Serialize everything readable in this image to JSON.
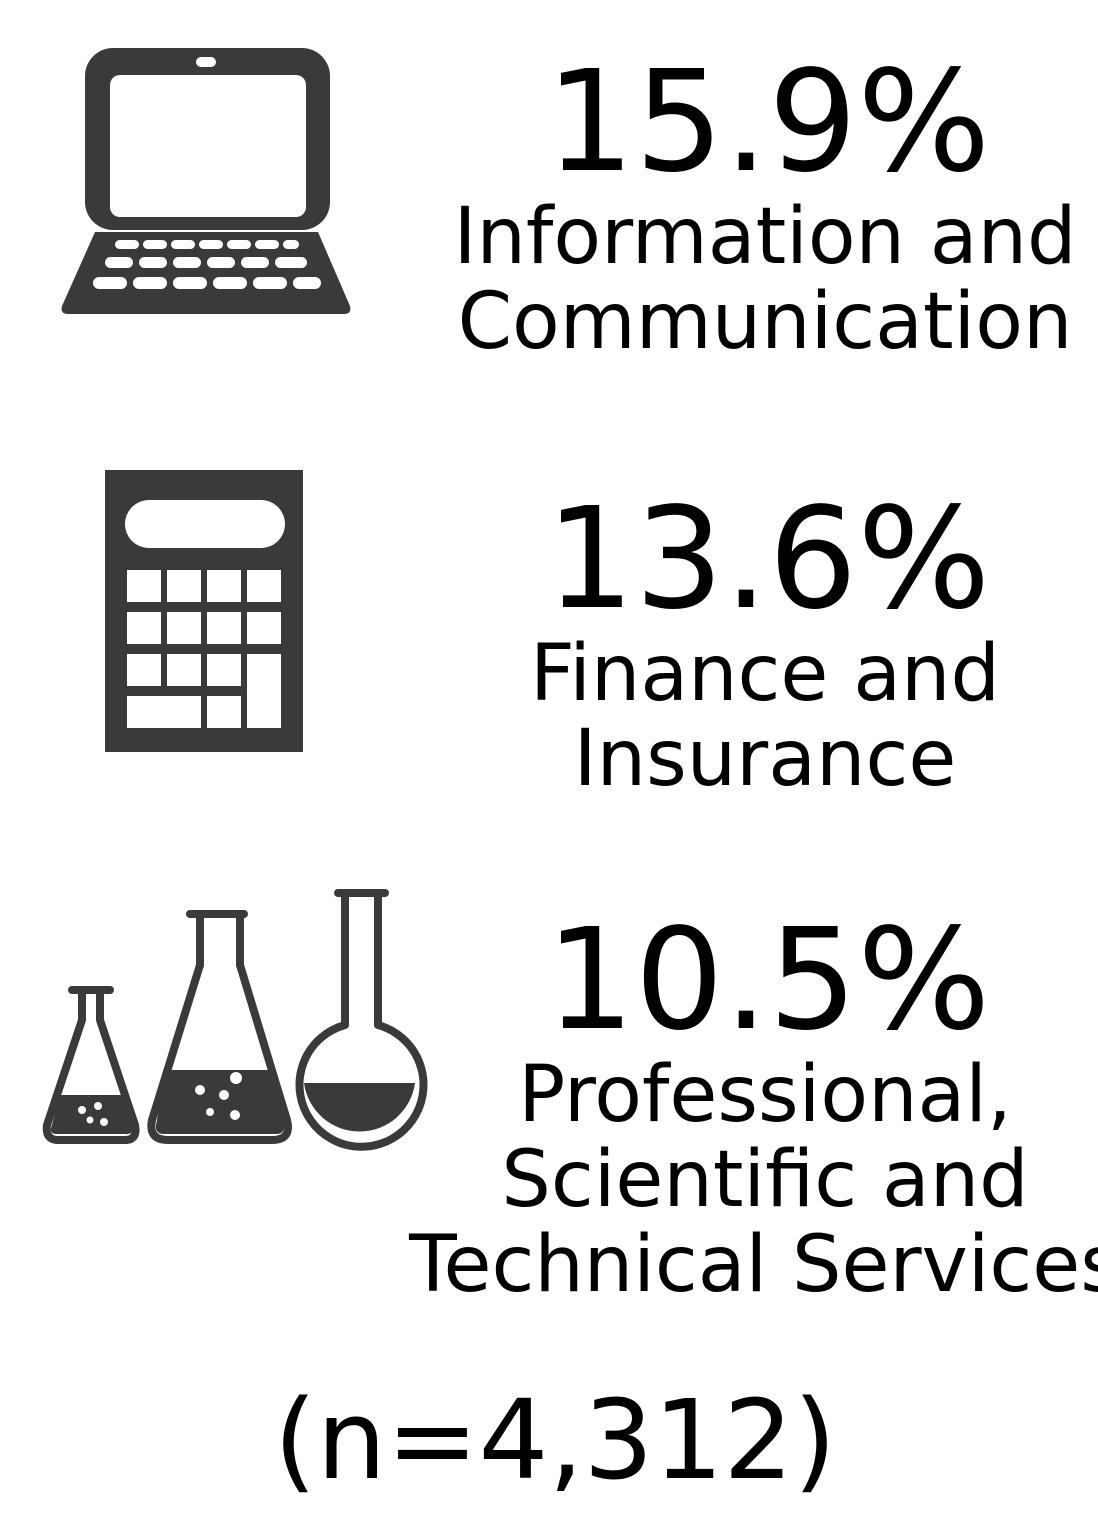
{
  "items": [
    {
      "value": "15.9%",
      "label_lines": [
        "Information and",
        "Communication"
      ]
    },
    {
      "value": "13.6%",
      "label_lines": [
        "Finance and",
        "Insurance"
      ]
    },
    {
      "value": "10.5%",
      "label_lines": [
        "Professional,",
        "Scientific and",
        "Technical Services"
      ]
    }
  ],
  "note": "(n=4,312)"
}
